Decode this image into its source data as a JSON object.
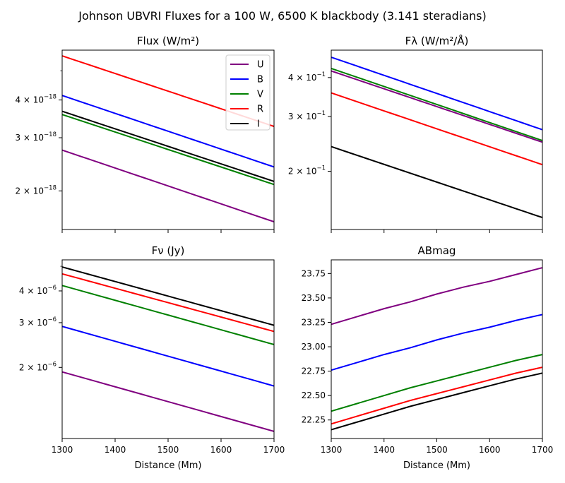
{
  "figure_title": "Johnson UBVRI Fluxes for a 100 W, 6500 K blackbody (3.141 steradians)",
  "chart_data": [
    {
      "type": "line",
      "title": "Flux (W/m²)",
      "xlabel": "",
      "ylabel": "",
      "yscale": "log",
      "xlim": [
        1300,
        1700
      ],
      "ylim": [
        1.49e-18,
        5.85e-18
      ],
      "x_ticks": [
        1300,
        1400,
        1500,
        1600,
        1700
      ],
      "x_ticklabels_visible": false,
      "y_ticks": [
        {
          "value": 2e-18,
          "mant": "2",
          "exp": "−18"
        },
        {
          "value": 3e-18,
          "mant": "3",
          "exp": "−18"
        },
        {
          "value": 4e-18,
          "mant": "4",
          "exp": "−18"
        }
      ],
      "legend": {
        "position": "top-right",
        "entries": [
          "U",
          "B",
          "V",
          "R",
          "I"
        ]
      },
      "x": [
        1300,
        1700
      ],
      "series": [
        {
          "name": "U",
          "color": "#800080",
          "values": [
            2.73e-18,
            1.58e-18
          ]
        },
        {
          "name": "B",
          "color": "#0000ff",
          "values": [
            4.14e-18,
            2.4e-18
          ]
        },
        {
          "name": "V",
          "color": "#008000",
          "values": [
            3.58e-18,
            2.1e-18
          ]
        },
        {
          "name": "R",
          "color": "#ff0000",
          "values": [
            5.6e-18,
            3.27e-18
          ]
        },
        {
          "name": "I",
          "color": "#000000",
          "values": [
            3.67e-18,
            2.15e-18
          ]
        }
      ]
    },
    {
      "type": "line",
      "title": "Fλ (W/m²/Å)",
      "xlabel": "",
      "ylabel": "",
      "yscale": "log",
      "xlim": [
        1300,
        1700
      ],
      "ylim": [
        0.13,
        0.49
      ],
      "x_ticks": [
        1300,
        1400,
        1500,
        1600,
        1700
      ],
      "x_ticklabels_visible": false,
      "y_ticks": [
        {
          "value": 0.2,
          "mant": "2",
          "exp": "−1"
        },
        {
          "value": 0.3,
          "mant": "3",
          "exp": "−1"
        },
        {
          "value": 0.4,
          "mant": "4",
          "exp": "−1"
        }
      ],
      "x": [
        1300,
        1700
      ],
      "series": [
        {
          "name": "U",
          "color": "#800080",
          "values": [
            0.42,
            0.248
          ]
        },
        {
          "name": "B",
          "color": "#0000ff",
          "values": [
            0.465,
            0.272
          ]
        },
        {
          "name": "V",
          "color": "#008000",
          "values": [
            0.428,
            0.251
          ]
        },
        {
          "name": "R",
          "color": "#ff0000",
          "values": [
            0.357,
            0.21
          ]
        },
        {
          "name": "I",
          "color": "#000000",
          "values": [
            0.24,
            0.142
          ]
        }
      ]
    },
    {
      "type": "line",
      "title": "Fν (Jy)",
      "xlabel": "Distance (Mm)",
      "ylabel": "",
      "yscale": "log",
      "xlim": [
        1300,
        1700
      ],
      "ylim": [
        1.05e-06,
        5.3e-06
      ],
      "x_ticks": [
        1300,
        1400,
        1500,
        1600,
        1700
      ],
      "x_ticklabels_visible": true,
      "y_ticks": [
        {
          "value": 2e-06,
          "mant": "2",
          "exp": "−6"
        },
        {
          "value": 3e-06,
          "mant": "3",
          "exp": "−6"
        },
        {
          "value": 4e-06,
          "mant": "4",
          "exp": "−6"
        }
      ],
      "x": [
        1300,
        1700
      ],
      "series": [
        {
          "name": "U",
          "color": "#800080",
          "values": [
            1.92e-06,
            1.12e-06
          ]
        },
        {
          "name": "B",
          "color": "#0000ff",
          "values": [
            2.9e-06,
            1.69e-06
          ]
        },
        {
          "name": "V",
          "color": "#008000",
          "values": [
            4.2e-06,
            2.46e-06
          ]
        },
        {
          "name": "R",
          "color": "#ff0000",
          "values": [
            4.67e-06,
            2.77e-06
          ]
        },
        {
          "name": "I",
          "color": "#000000",
          "values": [
            4.97e-06,
            2.93e-06
          ]
        }
      ]
    },
    {
      "type": "line",
      "title": "ABmag",
      "xlabel": "Distance (Mm)",
      "ylabel": "",
      "yscale": "linear",
      "xlim": [
        1300,
        1700
      ],
      "ylim": [
        22.06,
        23.89
      ],
      "x_ticks": [
        1300,
        1400,
        1500,
        1600,
        1700
      ],
      "x_ticklabels_visible": true,
      "y_ticks": [
        {
          "value": 22.25,
          "label": "22.25"
        },
        {
          "value": 22.5,
          "label": "22.50"
        },
        {
          "value": 22.75,
          "label": "22.75"
        },
        {
          "value": 23.0,
          "label": "23.00"
        },
        {
          "value": 23.25,
          "label": "23.25"
        },
        {
          "value": 23.5,
          "label": "23.50"
        },
        {
          "value": 23.75,
          "label": "23.75"
        }
      ],
      "x": [
        1300,
        1350,
        1400,
        1450,
        1500,
        1550,
        1600,
        1650,
        1700
      ],
      "series": [
        {
          "name": "U",
          "color": "#800080",
          "values": [
            23.23,
            23.31,
            23.39,
            23.46,
            23.54,
            23.61,
            23.67,
            23.74,
            23.81
          ]
        },
        {
          "name": "B",
          "color": "#0000ff",
          "values": [
            22.76,
            22.84,
            22.92,
            22.99,
            23.07,
            23.14,
            23.2,
            23.27,
            23.33
          ]
        },
        {
          "name": "V",
          "color": "#008000",
          "values": [
            22.34,
            22.42,
            22.5,
            22.58,
            22.65,
            22.72,
            22.79,
            22.86,
            22.92
          ]
        },
        {
          "name": "R",
          "color": "#ff0000",
          "values": [
            22.21,
            22.29,
            22.37,
            22.45,
            22.52,
            22.59,
            22.66,
            22.73,
            22.79
          ]
        },
        {
          "name": "I",
          "color": "#000000",
          "values": [
            22.15,
            22.23,
            22.31,
            22.39,
            22.46,
            22.53,
            22.6,
            22.67,
            22.73
          ]
        }
      ]
    }
  ]
}
